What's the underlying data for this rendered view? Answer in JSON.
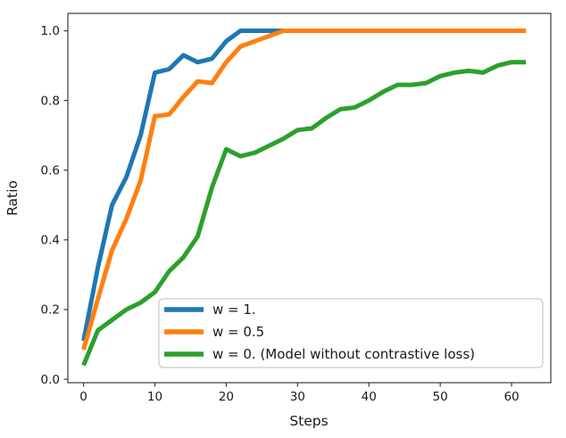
{
  "chart_data": {
    "type": "line",
    "title": "",
    "xlabel": "Steps",
    "ylabel": "Ratio",
    "xlim": [
      -2.2,
      65.5
    ],
    "ylim": [
      -0.01,
      1.05
    ],
    "xticks": [
      0,
      10,
      20,
      30,
      40,
      50,
      60
    ],
    "xtick_labels": [
      "0",
      "10",
      "20",
      "30",
      "40",
      "50",
      "60"
    ],
    "yticks": [
      0.0,
      0.2,
      0.4,
      0.6,
      0.8,
      1.0
    ],
    "ytick_labels": [
      "0.0",
      "0.2",
      "0.4",
      "0.6",
      "0.8",
      "1.0"
    ],
    "grid": false,
    "axis_color": "#3b3b3b",
    "text_color": "#1a1a1a",
    "line_width": 5,
    "legend": {
      "position": "inside lower-center-right",
      "border_color": "#cccccc",
      "background": "#ffffff",
      "opacity": 0.85
    },
    "x": [
      0,
      2,
      4,
      6,
      8,
      10,
      12,
      14,
      16,
      18,
      20,
      22,
      24,
      26,
      28,
      30,
      32,
      34,
      36,
      38,
      40,
      42,
      44,
      46,
      48,
      50,
      52,
      54,
      56,
      58,
      60,
      62
    ],
    "series": [
      {
        "name": "w = 1.",
        "color": "#1f77b4",
        "values": [
          0.11,
          0.32,
          0.5,
          0.58,
          0.7,
          0.88,
          0.89,
          0.93,
          0.91,
          0.92,
          0.97,
          1.0,
          1.0,
          1.0,
          1.0,
          1.0,
          1.0,
          1.0,
          1.0,
          1.0,
          1.0,
          1.0,
          1.0,
          1.0,
          1.0,
          1.0,
          1.0,
          1.0,
          1.0,
          1.0,
          1.0,
          1.0
        ]
      },
      {
        "name": "w = 0.5",
        "color": "#ff7f0e",
        "values": [
          0.085,
          0.23,
          0.37,
          0.46,
          0.57,
          0.755,
          0.76,
          0.81,
          0.855,
          0.85,
          0.91,
          0.955,
          0.97,
          0.985,
          1.0,
          1.0,
          1.0,
          1.0,
          1.0,
          1.0,
          1.0,
          1.0,
          1.0,
          1.0,
          1.0,
          1.0,
          1.0,
          1.0,
          1.0,
          1.0,
          1.0,
          1.0
        ]
      },
      {
        "name": "w = 0. (Model without contrastive loss)",
        "color": "#2ca02c",
        "values": [
          0.04,
          0.14,
          0.17,
          0.2,
          0.22,
          0.25,
          0.31,
          0.35,
          0.41,
          0.55,
          0.66,
          0.64,
          0.65,
          0.67,
          0.69,
          0.715,
          0.72,
          0.75,
          0.775,
          0.78,
          0.8,
          0.825,
          0.845,
          0.845,
          0.85,
          0.87,
          0.88,
          0.885,
          0.88,
          0.9,
          0.91,
          0.91
        ]
      }
    ]
  }
}
